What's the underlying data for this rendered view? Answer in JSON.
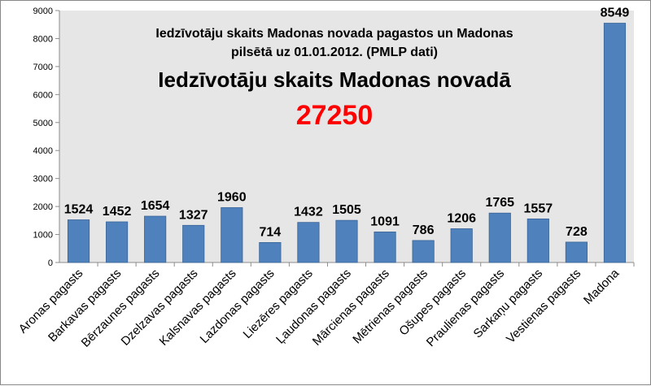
{
  "chart_data": {
    "type": "bar",
    "title_line1": "Iedzīvotāju skaits Madonas novada pagastos un Madonas",
    "title_line2": "pilsētā  uz 01.01.2012. (PMLP dati)",
    "subtitle": "Iedzīvotāju skaits Madonas novadā",
    "total": "27250",
    "total_color": "#ff0000",
    "categories": [
      "Aronas pagasts",
      "Barkavas pagasts",
      "Bērzaunes pagasts",
      "Dzelzavas pagasts",
      "Kalsnavas pagasts",
      "Lazdonas pagasts",
      "Liezēres pagasts",
      "Ļaudonas pagasts",
      "Mārcienas pagasts",
      "Mētrienas pagasts",
      "Ošupes pagasts",
      "Praulienas pagasts",
      "Sarkaņu pagasts",
      "Vestienas pagasts",
      "Madona"
    ],
    "values": [
      1524,
      1452,
      1654,
      1327,
      1960,
      714,
      1432,
      1505,
      1091,
      786,
      1206,
      1765,
      1557,
      728,
      8549
    ],
    "data_labels": [
      "1524",
      "1452",
      "1654",
      "1327",
      "1960",
      "714",
      "1432",
      "1505",
      "1091",
      "786",
      "1206",
      "1765",
      "1557",
      "728",
      "8549"
    ],
    "y_ticks": [
      "0",
      "1000",
      "2000",
      "3000",
      "4000",
      "5000",
      "6000",
      "7000",
      "8000",
      "9000"
    ],
    "ylim": [
      0,
      9000
    ],
    "plot_background": "#e6e6e6",
    "bar_color": "#4f81bd",
    "bar_border": "#3a6496",
    "grid": false,
    "legend": "none"
  }
}
